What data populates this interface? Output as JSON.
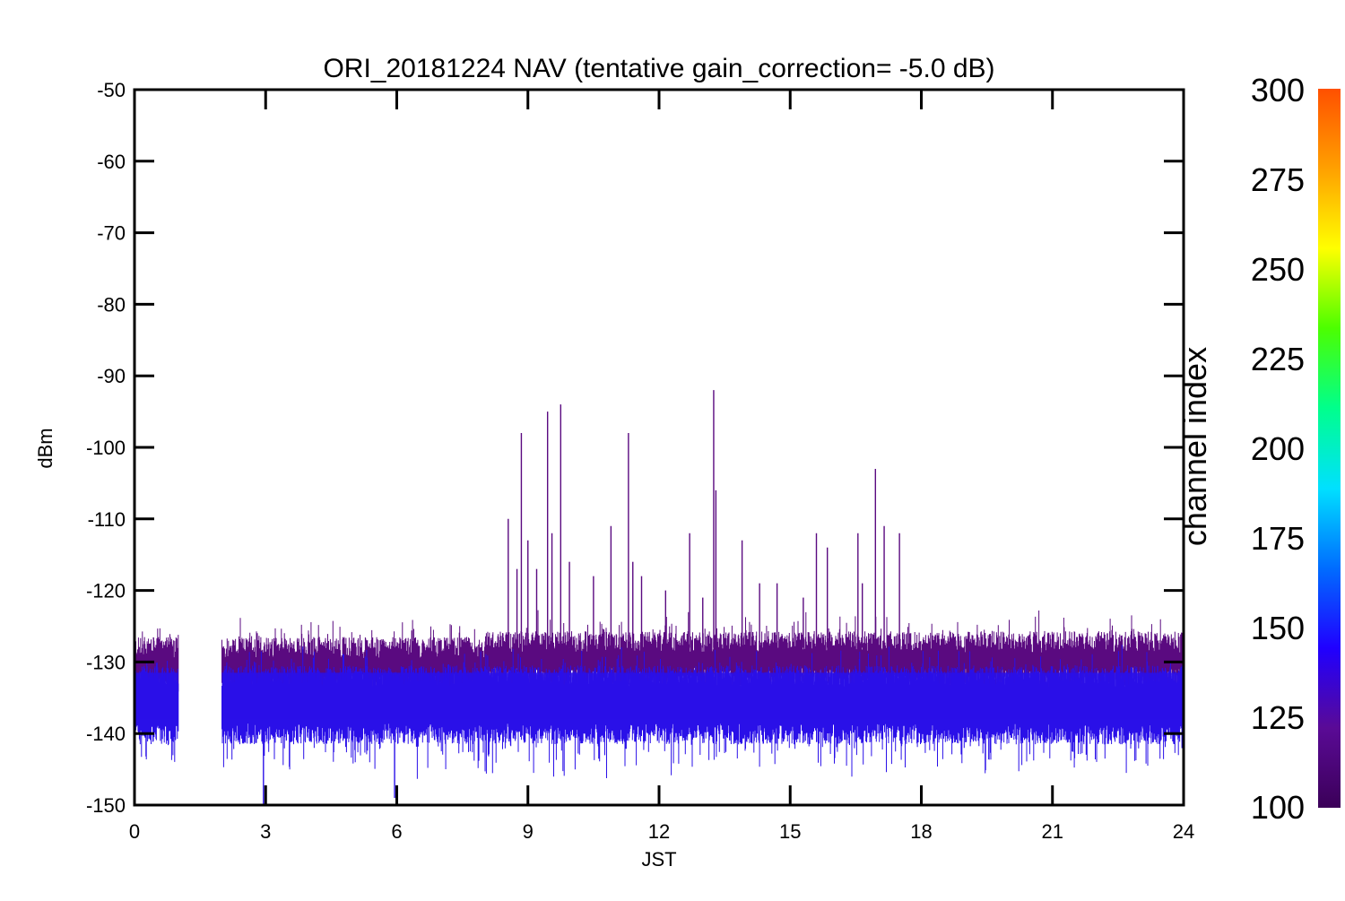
{
  "chart_data": {
    "type": "line",
    "title": "ORI_20181224 NAV (tentative gain_correction= -5.0 dB)",
    "xlabel": "JST",
    "ylabel": "dBm",
    "xlim": [
      0,
      24
    ],
    "ylim": [
      -150,
      -50
    ],
    "x_ticks": [
      0,
      3,
      6,
      9,
      12,
      15,
      18,
      21,
      24
    ],
    "y_ticks": [
      -50,
      -60,
      -70,
      -80,
      -90,
      -100,
      -110,
      -120,
      -130,
      -140,
      -150
    ],
    "grid": false,
    "data_gap": [
      1.0,
      2.0
    ],
    "color_variable": "channel index",
    "colorbar": {
      "label": "channel index",
      "range": [
        100,
        300
      ],
      "ticks": [
        300,
        275,
        250,
        225,
        200,
        175,
        150,
        125,
        100
      ],
      "colors": [
        "#3b0058",
        "#5a0a96",
        "#2000ff",
        "#006cff",
        "#00e0ff",
        "#00ff8c",
        "#4cff00",
        "#ffff00",
        "#ffa000",
        "#ff5000"
      ]
    },
    "series": [
      {
        "color": "#5a0a80",
        "band_upper": -128,
        "band_lower": -133,
        "spikes": [
          {
            "x": 8.55,
            "y": -110
          },
          {
            "x": 8.75,
            "y": -117
          },
          {
            "x": 8.85,
            "y": -98
          },
          {
            "x": 9.0,
            "y": -113
          },
          {
            "x": 9.2,
            "y": -117
          },
          {
            "x": 9.45,
            "y": -95
          },
          {
            "x": 9.55,
            "y": -112
          },
          {
            "x": 9.75,
            "y": -94
          },
          {
            "x": 9.95,
            "y": -116
          },
          {
            "x": 10.5,
            "y": -118
          },
          {
            "x": 10.9,
            "y": -111
          },
          {
            "x": 11.3,
            "y": -98
          },
          {
            "x": 11.4,
            "y": -116
          },
          {
            "x": 11.6,
            "y": -118
          },
          {
            "x": 12.15,
            "y": -120
          },
          {
            "x": 12.7,
            "y": -112
          },
          {
            "x": 13.0,
            "y": -121
          },
          {
            "x": 13.25,
            "y": -92
          },
          {
            "x": 13.3,
            "y": -106
          },
          {
            "x": 13.9,
            "y": -113
          },
          {
            "x": 14.3,
            "y": -119
          },
          {
            "x": 14.7,
            "y": -119
          },
          {
            "x": 15.3,
            "y": -121
          },
          {
            "x": 15.6,
            "y": -112
          },
          {
            "x": 15.85,
            "y": -114
          },
          {
            "x": 16.55,
            "y": -112
          },
          {
            "x": 16.65,
            "y": -119
          },
          {
            "x": 16.95,
            "y": -103
          },
          {
            "x": 17.15,
            "y": -111
          },
          {
            "x": 17.5,
            "y": -112
          }
        ]
      },
      {
        "color": "#2a10e8",
        "band_upper": -132,
        "band_lower": -140,
        "spikes": [
          {
            "x": 2.95,
            "y": -150
          },
          {
            "x": 5.95,
            "y": -149
          }
        ]
      }
    ]
  }
}
